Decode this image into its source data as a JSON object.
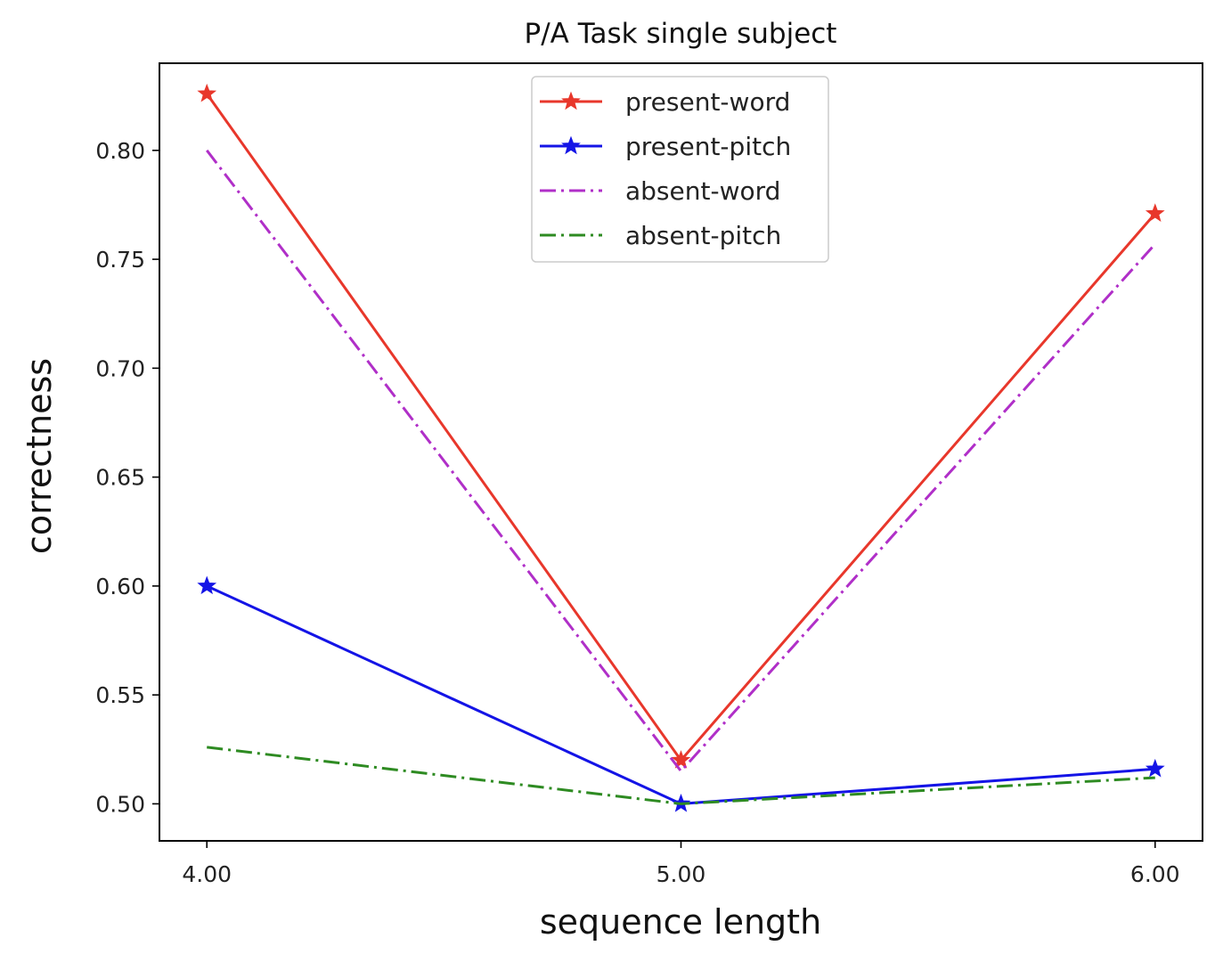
{
  "chart_data": {
    "type": "line",
    "title": "P/A Task single subject",
    "xlabel": "sequence length",
    "ylabel": "correctness",
    "x": [
      4,
      5,
      6
    ],
    "xticks": [
      "4.00",
      "5.00",
      "6.00"
    ],
    "yticks": [
      "0.50",
      "0.55",
      "0.60",
      "0.65",
      "0.70",
      "0.75",
      "0.80"
    ],
    "xlim": [
      3.9,
      6.1
    ],
    "ylim": [
      0.483,
      0.84
    ],
    "grid": false,
    "legend_position": "top-center",
    "series": [
      {
        "name": "present-word",
        "values": [
          0.826,
          0.52,
          0.771
        ],
        "color": "#e8372b",
        "style": "solid",
        "marker": "star"
      },
      {
        "name": "present-pitch",
        "values": [
          0.6,
          0.5,
          0.516
        ],
        "color": "#1414e6",
        "style": "solid",
        "marker": "star"
      },
      {
        "name": "absent-word",
        "values": [
          0.8,
          0.515,
          0.757
        ],
        "color": "#b02fc8",
        "style": "dashdot",
        "marker": "none"
      },
      {
        "name": "absent-pitch",
        "values": [
          0.526,
          0.5,
          0.512
        ],
        "color": "#2e8b22",
        "style": "dashdot",
        "marker": "none"
      }
    ]
  }
}
